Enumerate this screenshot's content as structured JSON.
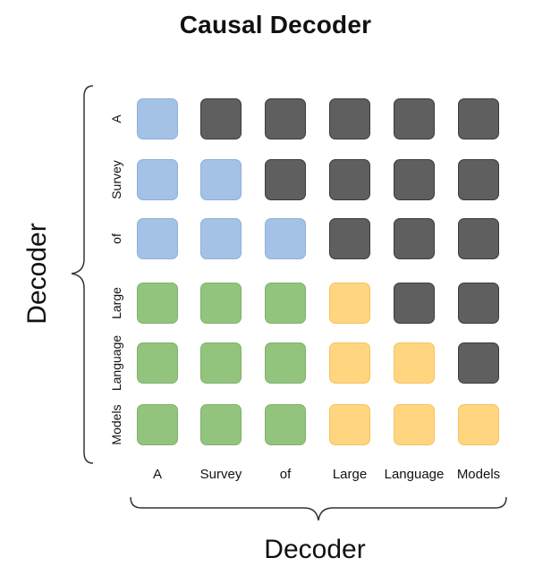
{
  "title": "Causal Decoder",
  "left_axis_label": "Decoder",
  "bottom_axis_label": "Decoder",
  "tokens": [
    "A",
    "Survey",
    "of",
    "Large",
    "Language",
    "Models"
  ],
  "colors": {
    "blue": "#a4c2e6",
    "blue_border": "#8eafdb",
    "green": "#93c47d",
    "green_border": "#7fb26a",
    "yellow": "#ffd580",
    "yellow_border": "#f6c25f",
    "gray": "#5f5f5f",
    "gray_border": "#3b3b3b"
  },
  "grid": [
    [
      "blue",
      "gray",
      "gray",
      "gray",
      "gray",
      "gray"
    ],
    [
      "blue",
      "blue",
      "gray",
      "gray",
      "gray",
      "gray"
    ],
    [
      "blue",
      "blue",
      "blue",
      "gray",
      "gray",
      "gray"
    ],
    [
      "green",
      "green",
      "green",
      "yellow",
      "gray",
      "gray"
    ],
    [
      "green",
      "green",
      "green",
      "yellow",
      "yellow",
      "gray"
    ],
    [
      "green",
      "green",
      "green",
      "yellow",
      "yellow",
      "yellow"
    ]
  ]
}
